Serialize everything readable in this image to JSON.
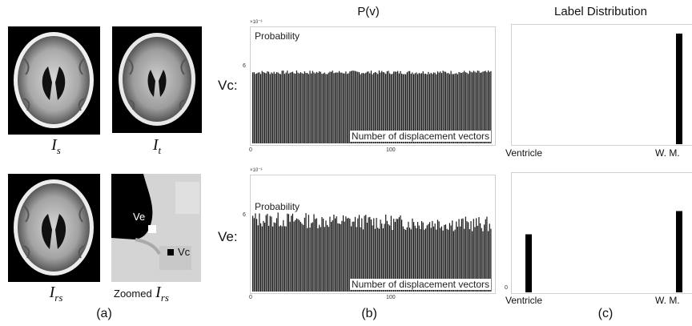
{
  "panel_a": {
    "img1_caption": "I",
    "img1_sub": "s",
    "img2_caption": "I",
    "img2_sub": "t",
    "img3_caption": "I",
    "img3_sub": "rs",
    "zoom_caption_word": "Zoomed",
    "zoom_caption_math": "I",
    "zoom_caption_sub": "rs",
    "ve_label": "Ve",
    "vc_label": "Vc",
    "panel_label": "(a)"
  },
  "panel_b": {
    "title": "P(v)",
    "panel_label": "(b)",
    "row1_label": "Vc:",
    "row2_label": "Ve:"
  },
  "panel_c": {
    "title": "Label Distribution",
    "panel_label": "(c)"
  },
  "chart_data": [
    {
      "type": "bar",
      "name": "Vc P(v)",
      "ylabel": "Probability",
      "xlabel": "Number of displacement vectors",
      "scale_note": "×10⁻³",
      "xlim": [
        0,
        180
      ],
      "ylim": [
        0,
        9
      ],
      "xticks": [
        "0",
        "100"
      ],
      "yticks": [
        "6"
      ],
      "bar_count": 180,
      "values_summary": {
        "mean": 5.5,
        "jitter": 0.15
      }
    },
    {
      "type": "bar",
      "name": "Ve P(v)",
      "ylabel": "Probability",
      "xlabel": "Number of displacement vectors",
      "scale_note": "×10⁻³",
      "xlim": [
        0,
        180
      ],
      "ylim": [
        0,
        9
      ],
      "xticks": [
        "0",
        "100"
      ],
      "yticks": [
        "6"
      ],
      "bar_count": 180,
      "values_summary": {
        "mean": 5.6,
        "jitter": 0.6
      }
    },
    {
      "type": "bar",
      "name": "Vc label distribution",
      "categories": [
        "Ventricle",
        "W. M."
      ],
      "values": [
        0,
        1.0
      ],
      "ylim": [
        0,
        1.05
      ]
    },
    {
      "type": "bar",
      "name": "Ve label distribution",
      "categories": [
        "Ventricle",
        "W. M."
      ],
      "values": [
        0.3,
        0.42
      ],
      "yticks": [
        "0"
      ],
      "ylim": [
        0,
        0.6
      ]
    }
  ]
}
